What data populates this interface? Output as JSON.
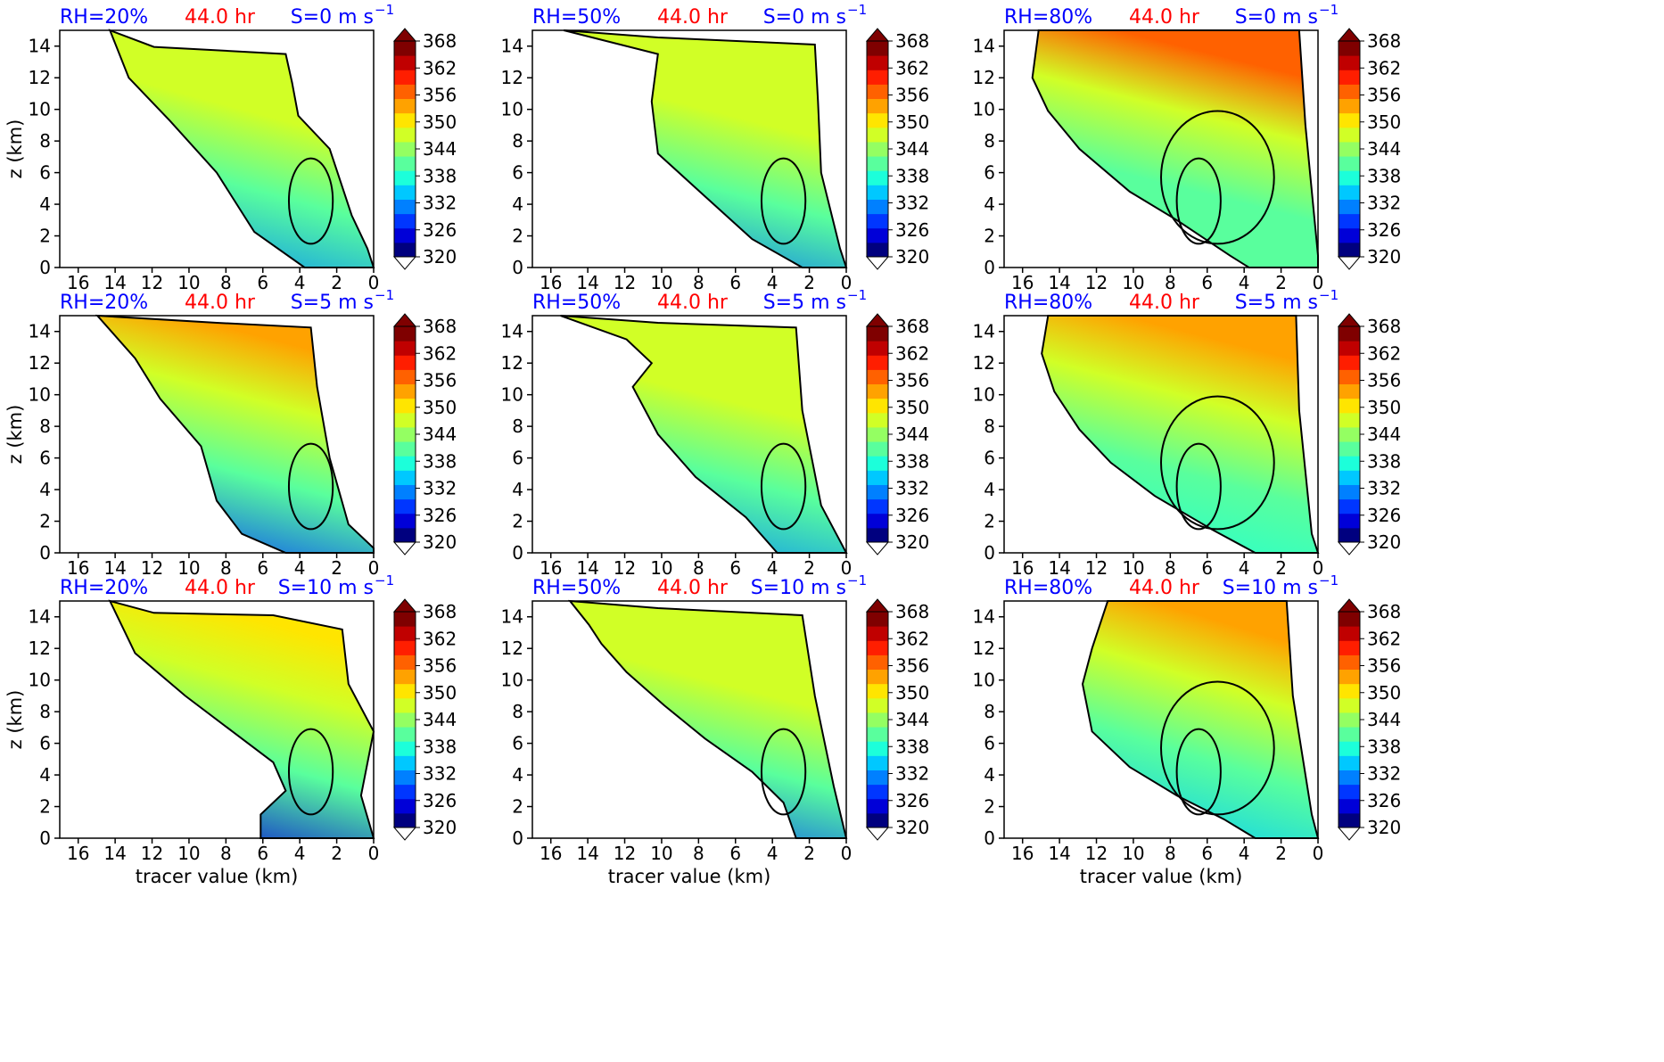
{
  "figure": {
    "colorbar": {
      "ticks": [
        "368",
        "362",
        "356",
        "350",
        "344",
        "338",
        "332",
        "326",
        "320"
      ],
      "min": 320,
      "max": 368,
      "step": 3,
      "extend": "both",
      "colormap": [
        "#00007f",
        "#0000d8",
        "#0036ff",
        "#0080ff",
        "#00c8ff",
        "#1cffda",
        "#59ff9d",
        "#94ff62",
        "#d1ff26",
        "#ffe500",
        "#ffa200",
        "#ff6100",
        "#ff1e00",
        "#c00000",
        "#7f0000"
      ]
    },
    "xlabel": "tracer value (km)",
    "ylabel": "z (km)"
  },
  "chart_data": [
    {
      "type": "heatmap",
      "rh": "RH=20%",
      "time": "44.0 hr",
      "shear": "S=0 m s",
      "shear_exp": "−1",
      "xlim": [
        17,
        0
      ],
      "ylim": [
        0,
        15
      ],
      "xticks": [
        "16",
        "14",
        "12",
        "10",
        "8",
        "6",
        "4",
        "2",
        "0"
      ],
      "yticks": [
        "0",
        "2",
        "4",
        "6",
        "8",
        "10",
        "12",
        "14"
      ],
      "grid": false
    },
    {
      "type": "heatmap",
      "rh": "RH=50%",
      "time": "44.0 hr",
      "shear": "S=0 m s",
      "shear_exp": "−1",
      "xlim": [
        17,
        0
      ],
      "ylim": [
        0,
        15
      ],
      "xticks": [
        "16",
        "14",
        "12",
        "10",
        "8",
        "6",
        "4",
        "2",
        "0"
      ],
      "yticks": [
        "0",
        "2",
        "4",
        "6",
        "8",
        "10",
        "12",
        "14"
      ],
      "grid": false
    },
    {
      "type": "heatmap",
      "rh": "RH=80%",
      "time": "44.0 hr",
      "shear": "S=0 m s",
      "shear_exp": "−1",
      "xlim": [
        17,
        0
      ],
      "ylim": [
        0,
        15
      ],
      "xticks": [
        "16",
        "14",
        "12",
        "10",
        "8",
        "6",
        "4",
        "2",
        "0"
      ],
      "yticks": [
        "0",
        "2",
        "4",
        "6",
        "8",
        "10",
        "12",
        "14"
      ],
      "grid": false
    },
    {
      "type": "heatmap",
      "rh": "RH=20%",
      "time": "44.0 hr",
      "shear": "S=5 m s",
      "shear_exp": "−1",
      "xlim": [
        17,
        0
      ],
      "ylim": [
        0,
        15
      ],
      "xticks": [
        "16",
        "14",
        "12",
        "10",
        "8",
        "6",
        "4",
        "2",
        "0"
      ],
      "yticks": [
        "0",
        "2",
        "4",
        "6",
        "8",
        "10",
        "12",
        "14"
      ],
      "grid": false
    },
    {
      "type": "heatmap",
      "rh": "RH=50%",
      "time": "44.0 hr",
      "shear": "S=5 m s",
      "shear_exp": "−1",
      "xlim": [
        17,
        0
      ],
      "ylim": [
        0,
        15
      ],
      "xticks": [
        "16",
        "14",
        "12",
        "10",
        "8",
        "6",
        "4",
        "2",
        "0"
      ],
      "yticks": [
        "0",
        "2",
        "4",
        "6",
        "8",
        "10",
        "12",
        "14"
      ],
      "grid": false
    },
    {
      "type": "heatmap",
      "rh": "RH=80%",
      "time": "44.0 hr",
      "shear": "S=5 m s",
      "shear_exp": "−1",
      "xlim": [
        17,
        0
      ],
      "ylim": [
        0,
        15
      ],
      "xticks": [
        "16",
        "14",
        "12",
        "10",
        "8",
        "6",
        "4",
        "2",
        "0"
      ],
      "yticks": [
        "0",
        "2",
        "4",
        "6",
        "8",
        "10",
        "12",
        "14"
      ],
      "grid": false
    },
    {
      "type": "heatmap",
      "rh": "RH=20%",
      "time": "44.0 hr",
      "shear": "S=10 m s",
      "shear_exp": "−1",
      "xlim": [
        17,
        0
      ],
      "ylim": [
        0,
        15
      ],
      "xticks": [
        "16",
        "14",
        "12",
        "10",
        "8",
        "6",
        "4",
        "2",
        "0"
      ],
      "yticks": [
        "0",
        "2",
        "4",
        "6",
        "8",
        "10",
        "12",
        "14"
      ],
      "grid": false
    },
    {
      "type": "heatmap",
      "rh": "RH=50%",
      "time": "44.0 hr",
      "shear": "S=10 m s",
      "shear_exp": "−1",
      "xlim": [
        17,
        0
      ],
      "ylim": [
        0,
        15
      ],
      "xticks": [
        "16",
        "14",
        "12",
        "10",
        "8",
        "6",
        "4",
        "2",
        "0"
      ],
      "yticks": [
        "0",
        "2",
        "4",
        "6",
        "8",
        "10",
        "12",
        "14"
      ],
      "grid": false
    },
    {
      "type": "heatmap",
      "rh": "RH=80%",
      "time": "44.0 hr",
      "shear": "S=10 m s",
      "shear_exp": "−1",
      "xlim": [
        17,
        0
      ],
      "ylim": [
        0,
        15
      ],
      "xticks": [
        "16",
        "14",
        "12",
        "10",
        "8",
        "6",
        "4",
        "2",
        "0"
      ],
      "yticks": [
        "0",
        "2",
        "4",
        "6",
        "8",
        "10",
        "12",
        "14"
      ],
      "grid": false
    }
  ]
}
